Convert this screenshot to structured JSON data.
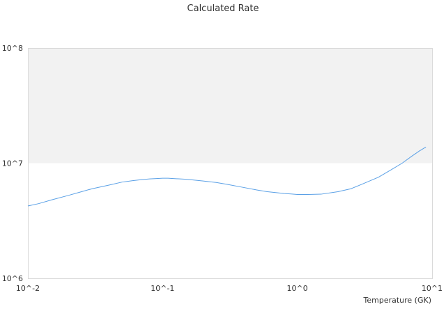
{
  "chart_data": {
    "type": "line",
    "title": "Calculated Rate",
    "xlabel": "Temperature (GK)",
    "ylabel": "",
    "x_scale": "log",
    "y_scale": "log",
    "xlim": [
      0.01,
      10
    ],
    "ylim": [
      1000000,
      100000000
    ],
    "x_tick_labels": [
      "10^-2",
      "10^-1",
      "10^0",
      "10^1"
    ],
    "y_tick_labels": [
      "10^6",
      "10^7",
      "10^8"
    ],
    "band": {
      "y_from": 10000000,
      "y_to": 100000000,
      "color": "#f2f2f2"
    },
    "grid": false,
    "legend": "none",
    "colors": {
      "line": "#5aa0e6",
      "plot_border": "#d9d9d9",
      "text": "#333333"
    },
    "series": [
      {
        "x": [
          0.01,
          0.012,
          0.015,
          0.02,
          0.025,
          0.03,
          0.04,
          0.05,
          0.06,
          0.07,
          0.08,
          0.09,
          0.1,
          0.11,
          0.12,
          0.15,
          0.2,
          0.25,
          0.3,
          0.4,
          0.5,
          0.6,
          0.7,
          0.8,
          0.9,
          1.0,
          1.2,
          1.5,
          2.0,
          2.5,
          3.0,
          4.0,
          5.0,
          6.0,
          7.0,
          8.0,
          9.0
        ],
        "y": [
          4250000,
          4450000,
          4800000,
          5250000,
          5650000,
          6000000,
          6450000,
          6850000,
          7050000,
          7200000,
          7300000,
          7350000,
          7400000,
          7400000,
          7350000,
          7250000,
          7000000,
          6800000,
          6550000,
          6150000,
          5850000,
          5650000,
          5550000,
          5450000,
          5400000,
          5350000,
          5350000,
          5380000,
          5650000,
          6000000,
          6550000,
          7550000,
          8800000,
          10000000,
          11400000,
          12700000,
          13800000
        ]
      }
    ]
  }
}
